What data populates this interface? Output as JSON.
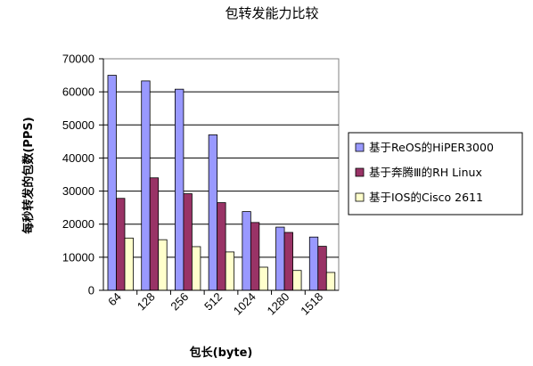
{
  "chart_data": {
    "type": "bar",
    "title": "包转发能力比较",
    "xlabel": "包长(byte)",
    "ylabel": "每秒转发的包数(PPS)",
    "categories": [
      "64",
      "128",
      "256",
      "512",
      "1024",
      "1280",
      "1518"
    ],
    "ylim": [
      0,
      70000
    ],
    "yticks": [
      "0",
      "10000",
      "20000",
      "30000",
      "40000",
      "50000",
      "60000",
      "70000"
    ],
    "grid": true,
    "legend_position": "right",
    "series": [
      {
        "name": "基于ReOS的HiPER3000",
        "color": "#9999ff",
        "values": [
          65000,
          63300,
          60800,
          47000,
          23800,
          19100,
          16100
        ]
      },
      {
        "name": "基于奔腾Ⅲ的RH Linux",
        "color": "#993366",
        "values": [
          27800,
          34000,
          29200,
          26500,
          20500,
          17500,
          13300
        ]
      },
      {
        "name": "基于IOS的Cisco 2611",
        "color": "#ffffcc",
        "values": [
          15800,
          15300,
          13200,
          11600,
          7000,
          6000,
          5400
        ]
      }
    ]
  }
}
